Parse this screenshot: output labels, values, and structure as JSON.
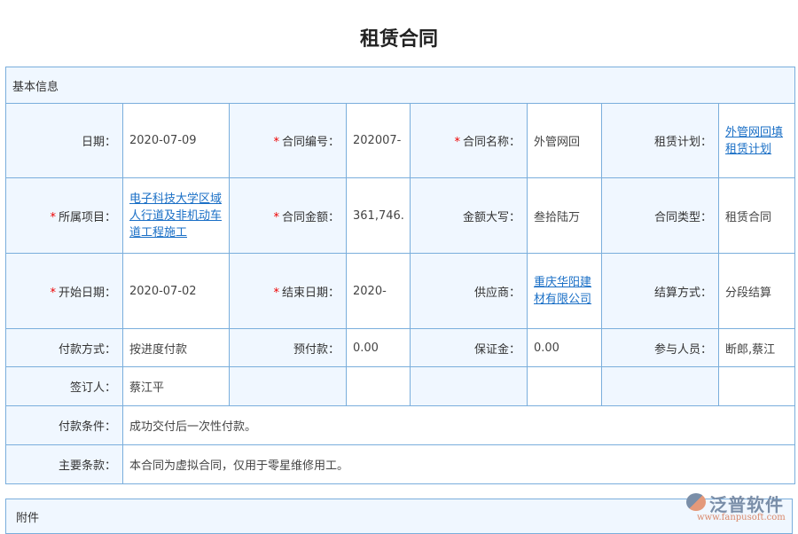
{
  "title": "租赁合同",
  "section": "基本信息",
  "rows": [
    [
      {
        "label": "日期：",
        "value": "2020-07-09"
      },
      {
        "label": "合同编号：",
        "value": "202007-",
        "req": true
      },
      {
        "label": "合同名称：",
        "value": "外管网回",
        "req": true
      },
      {
        "label": "租赁计划：",
        "value": "外管网回填租赁计划",
        "link": true
      }
    ],
    [
      {
        "label": "所属项目：",
        "value": "电子科技大学区域人行道及非机动车道工程施工",
        "req": true,
        "link": true
      },
      {
        "label": "合同金额：",
        "value": "361,746.",
        "req": true
      },
      {
        "label": "金额大写：",
        "value": "叁拾陆万"
      },
      {
        "label": "合同类型：",
        "value": "租赁合同"
      }
    ],
    [
      {
        "label": "开始日期：",
        "value": "2020-07-02",
        "req": true
      },
      {
        "label": "结束日期：",
        "value": "2020-",
        "req": true
      },
      {
        "label": "供应商：",
        "value": "重庆华阳建材有限公司",
        "link": true
      },
      {
        "label": "结算方式：",
        "value": "分段结算"
      }
    ],
    [
      {
        "label": "付款方式：",
        "value": "按进度付款"
      },
      {
        "label": "预付款：",
        "value": "0.00"
      },
      {
        "label": "保证金：",
        "value": "0.00"
      },
      {
        "label": "参与人员：",
        "value": "断郎,蔡江"
      }
    ],
    [
      {
        "label": "签订人：",
        "value": "蔡江平"
      }
    ]
  ],
  "payment_terms": {
    "label": "付款条件：",
    "value": "成功交付后一次性付款。"
  },
  "main_terms": {
    "label": "主要条款：",
    "value": "本合同为虚拟合同，仅用于零星维修用工。"
  },
  "attachment": "附件",
  "logo": {
    "name": "泛普软件",
    "url": "www.fanpusoft.com"
  }
}
